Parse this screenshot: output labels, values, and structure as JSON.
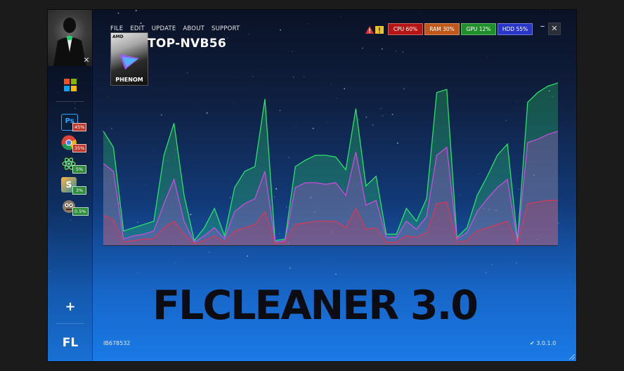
{
  "menu": {
    "items": [
      "FILE",
      "EDIT",
      "UPDATE",
      "ABOUT",
      "SUPPORT"
    ]
  },
  "system": {
    "hostname": "TOP-NVB56",
    "cpu_card": {
      "brand": "AMD",
      "model": "PHENOM"
    }
  },
  "stats": [
    {
      "label": "CPU 60%",
      "color": "#b51515"
    },
    {
      "label": "RAM 30%",
      "color": "#c2571a"
    },
    {
      "label": "GPU 12%",
      "color": "#1f8f2a"
    },
    {
      "label": "HDD 55%",
      "color": "#2a36c8"
    }
  ],
  "sidebar": {
    "apps": [
      {
        "name": "photoshop",
        "badge": "45%",
        "badge_color": "#c0392b"
      },
      {
        "name": "chrome",
        "badge": "35%",
        "badge_color": "#c0392b"
      },
      {
        "name": "atom",
        "badge": "5%",
        "badge_color": "#2e8b3a"
      },
      {
        "name": "sublime",
        "badge": "3%",
        "badge_color": "#2e8b3a"
      },
      {
        "name": "gimp",
        "badge": "0.5%",
        "badge_color": "#2e8b3a"
      }
    ],
    "add_label": "+",
    "logo_label": "FL"
  },
  "brand": {
    "title": "FLCLEANER 3.0"
  },
  "footer": {
    "serial": "IB678532",
    "version": "3.0.1.0"
  },
  "chart_data": {
    "type": "area",
    "series": [
      {
        "color": "#2ee06a",
        "values": [
          70,
          60,
          8,
          10,
          12,
          14,
          55,
          75,
          30,
          2,
          10,
          22,
          5,
          35,
          45,
          48,
          90,
          2,
          3,
          48,
          52,
          55,
          55,
          54,
          46,
          84,
          36,
          42,
          6,
          6,
          22,
          14,
          28,
          94,
          96,
          4,
          10,
          30,
          42,
          55,
          62,
          2,
          88,
          94,
          98,
          100
        ]
      },
      {
        "color": "#c84ddb",
        "values": [
          50,
          45,
          3,
          5,
          6,
          8,
          25,
          40,
          14,
          1,
          5,
          10,
          3,
          20,
          25,
          28,
          45,
          1,
          2,
          35,
          38,
          38,
          37,
          38,
          30,
          57,
          24,
          27,
          4,
          4,
          14,
          9,
          17,
          55,
          60,
          3,
          7,
          20,
          28,
          35,
          40,
          1,
          63,
          65,
          68,
          70
        ]
      },
      {
        "color": "#d23a5a",
        "values": [
          18,
          15,
          1,
          2,
          3,
          3,
          10,
          14,
          6,
          0,
          2,
          5,
          1,
          8,
          10,
          12,
          20,
          0,
          1,
          12,
          13,
          14,
          14,
          14,
          10,
          22,
          9,
          10,
          1,
          1,
          5,
          4,
          7,
          25,
          26,
          1,
          2,
          8,
          10,
          12,
          14,
          0,
          25,
          26,
          27,
          27
        ]
      }
    ]
  },
  "colors": {
    "accent": "#1a7ae6"
  }
}
